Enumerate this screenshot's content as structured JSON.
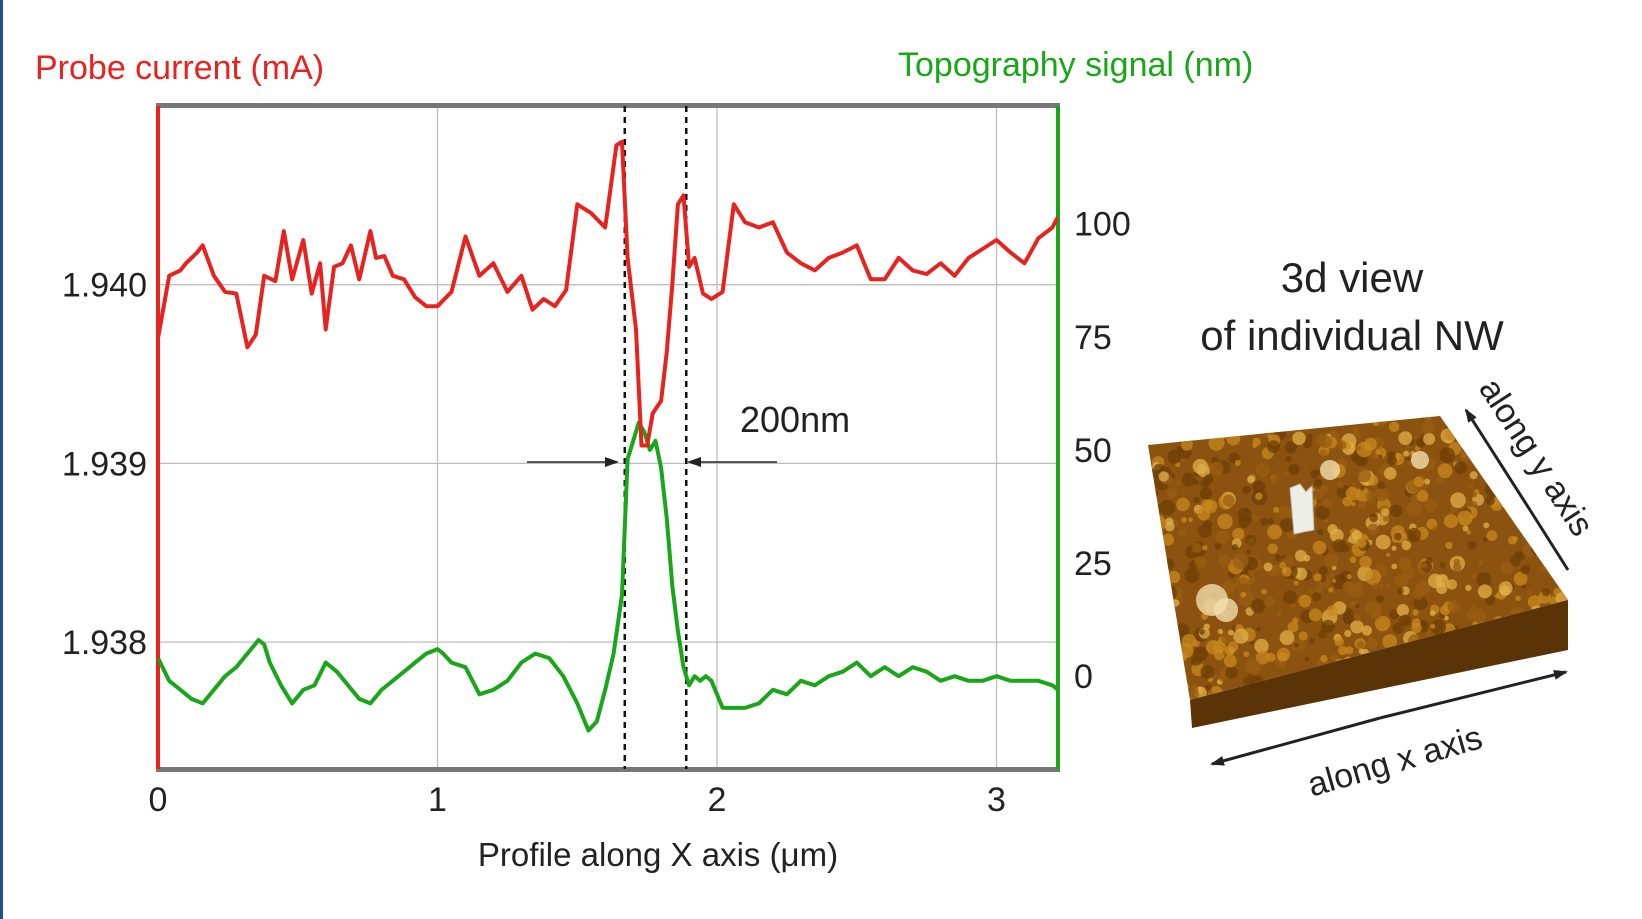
{
  "chart_data": {
    "type": "line",
    "left_axis_title": "Probe current (mA)",
    "right_axis_title": "Topography signal (nm)",
    "xlabel": "Profile along X axis (μm)",
    "xlim": [
      0,
      3.22
    ],
    "x_ticks": [
      "0",
      "1",
      "2",
      "3"
    ],
    "x_tick_values": [
      0,
      1,
      2,
      3
    ],
    "ylim_left": [
      1.93729,
      1.941
    ],
    "y_ticks_left": [
      "1.938",
      "1.939",
      "1.940"
    ],
    "y_tick_values_left": [
      1.938,
      1.939,
      1.94
    ],
    "ylim_right": [
      -20.5,
      126
    ],
    "y_ticks_right": [
      "0",
      "25",
      "50",
      "75",
      "100"
    ],
    "y_tick_values_right": [
      0,
      25,
      50,
      75,
      100
    ],
    "grid": true,
    "markers": [
      1.67,
      1.89
    ],
    "annotation": "200nm",
    "colors": {
      "current": "#e8231f",
      "topography": "#19a619",
      "axis": "#777777",
      "grid": "#bdbdbd"
    },
    "series": [
      {
        "axis": "left",
        "color": "#e8231f",
        "x": [
          0,
          0.04,
          0.08,
          0.1,
          0.14,
          0.16,
          0.2,
          0.24,
          0.28,
          0.32,
          0.35,
          0.38,
          0.42,
          0.45,
          0.48,
          0.52,
          0.55,
          0.58,
          0.6,
          0.63,
          0.66,
          0.69,
          0.72,
          0.76,
          0.78,
          0.81,
          0.84,
          0.88,
          0.92,
          0.96,
          1,
          1.05,
          1.1,
          1.15,
          1.2,
          1.25,
          1.3,
          1.34,
          1.38,
          1.42,
          1.46,
          1.5,
          1.55,
          1.6,
          1.64,
          1.66,
          1.68,
          1.71,
          1.73,
          1.75,
          1.77,
          1.8,
          1.82,
          1.84,
          1.86,
          1.88,
          1.9,
          1.92,
          1.95,
          1.98,
          2.02,
          2.06,
          2.1,
          2.15,
          2.2,
          2.25,
          2.3,
          2.35,
          2.4,
          2.45,
          2.5,
          2.55,
          2.6,
          2.65,
          2.7,
          2.75,
          2.8,
          2.85,
          2.9,
          2.95,
          3,
          3.05,
          3.1,
          3.15,
          3.2,
          3.22
        ],
        "values": [
          1.9397,
          1.94005,
          1.94008,
          1.94012,
          1.94018,
          1.94022,
          1.94005,
          1.93996,
          1.93995,
          1.93965,
          1.93972,
          1.94005,
          1.94002,
          1.9403,
          1.94003,
          1.94025,
          1.93995,
          1.94012,
          1.93975,
          1.9401,
          1.94012,
          1.94022,
          1.94003,
          1.9403,
          1.94015,
          1.94016,
          1.94005,
          1.94003,
          1.93993,
          1.93988,
          1.93988,
          1.93996,
          1.94027,
          1.94005,
          1.94012,
          1.93996,
          1.94005,
          1.93986,
          1.93992,
          1.93988,
          1.93997,
          1.94045,
          1.9404,
          1.94032,
          1.94078,
          1.9408,
          1.94015,
          1.93975,
          1.9391,
          1.9391,
          1.93928,
          1.93935,
          1.93962,
          1.94,
          1.94045,
          1.9405,
          1.9401,
          1.94015,
          1.93995,
          1.93992,
          1.93996,
          1.94045,
          1.94035,
          1.94032,
          1.94035,
          1.94018,
          1.94012,
          1.94008,
          1.94015,
          1.94018,
          1.94022,
          1.94003,
          1.94003,
          1.94015,
          1.94008,
          1.94006,
          1.94012,
          1.94005,
          1.94015,
          1.9402,
          1.94025,
          1.94018,
          1.94012,
          1.94026,
          1.94032,
          1.94038
        ]
      },
      {
        "axis": "right",
        "color": "#19a619",
        "x": [
          0,
          0.04,
          0.08,
          0.12,
          0.16,
          0.2,
          0.24,
          0.28,
          0.32,
          0.36,
          0.38,
          0.4,
          0.44,
          0.48,
          0.52,
          0.56,
          0.6,
          0.64,
          0.68,
          0.72,
          0.76,
          0.8,
          0.84,
          0.88,
          0.92,
          0.96,
          1,
          1.02,
          1.05,
          1.1,
          1.15,
          1.2,
          1.25,
          1.3,
          1.35,
          1.4,
          1.45,
          1.5,
          1.54,
          1.57,
          1.6,
          1.63,
          1.66,
          1.68,
          1.7,
          1.72,
          1.74,
          1.76,
          1.78,
          1.8,
          1.82,
          1.84,
          1.86,
          1.88,
          1.9,
          1.92,
          1.94,
          1.96,
          1.98,
          2.02,
          2.06,
          2.1,
          2.15,
          2.2,
          2.25,
          2.3,
          2.35,
          2.4,
          2.45,
          2.5,
          2.55,
          2.6,
          2.65,
          2.7,
          2.75,
          2.8,
          2.85,
          2.9,
          2.95,
          3,
          3.05,
          3.1,
          3.15,
          3.2,
          3.22
        ],
        "values": [
          4,
          -1,
          -3,
          -5,
          -6,
          -3,
          0,
          2,
          5,
          8,
          7,
          3,
          -2,
          -6,
          -3,
          -2,
          3,
          1,
          -2,
          -5,
          -6,
          -3,
          -1,
          1,
          3,
          5,
          6,
          5,
          3,
          2,
          -4,
          -3,
          -1,
          3,
          5,
          4,
          0,
          -6,
          -12,
          -10,
          -3,
          5,
          18,
          48,
          52,
          56,
          54,
          50,
          52,
          46,
          35,
          20,
          10,
          2,
          -2,
          0,
          -1,
          0,
          -1,
          -7,
          -7,
          -7,
          -6,
          -3,
          -4,
          -1,
          -2,
          0,
          1,
          3,
          0,
          2,
          0,
          2,
          1,
          -1,
          0,
          -1,
          -1,
          0,
          -1,
          -1,
          -1,
          -2,
          -3
        ]
      }
    ],
    "inset": {
      "title_line1": "3d view",
      "title_line2": "of individual NW",
      "x_axis_label": "along x axis",
      "y_axis_label": "along y axis",
      "surface_colors": [
        "#6e3f06",
        "#9a5d12",
        "#c8891e",
        "#e2b04a",
        "#f3dfae"
      ]
    }
  }
}
